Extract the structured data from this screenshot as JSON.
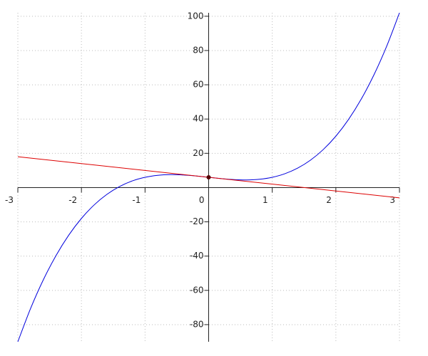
{
  "chart_data": {
    "type": "function-plot",
    "xlim": [
      -3,
      3
    ],
    "ylim": [
      -90,
      102
    ],
    "xticks": [
      -3,
      -2,
      -1,
      0,
      1,
      2,
      3
    ],
    "yticks": [
      -80,
      -60,
      -40,
      -20,
      20,
      40,
      60,
      80,
      100
    ],
    "grid": true,
    "series": [
      {
        "color": "#0000dd",
        "x": [
          -3,
          -2.8,
          -2.6,
          -2.4,
          -2.2,
          -2,
          -1.8,
          -1.6,
          -1.4,
          -1.2,
          -1,
          -0.8,
          -0.6,
          -0.4,
          -0.2,
          0,
          0.2,
          0.4,
          0.6,
          0.8,
          1,
          1.2,
          1.4,
          1.6,
          1.8,
          2,
          2.2,
          2.4,
          2.6,
          2.8,
          3
        ],
        "values": [
          -90,
          -70.608,
          -53.904,
          -39.696,
          -27.792,
          -18,
          -10.128,
          -3.984,
          0.624,
          3.888,
          6,
          7.152,
          7.536,
          7.344,
          6.768,
          6,
          5.232,
          4.656,
          4.464,
          4.848,
          6,
          8.112,
          11.376,
          15.984,
          22.128,
          30,
          39.792,
          51.696,
          65.904,
          82.608,
          102
        ]
      },
      {
        "color": "#dd0000",
        "x": [
          -3,
          3
        ],
        "values": [
          18,
          -6
        ]
      }
    ],
    "point": {
      "x": 0,
      "y": 6,
      "color": "#550000"
    }
  }
}
